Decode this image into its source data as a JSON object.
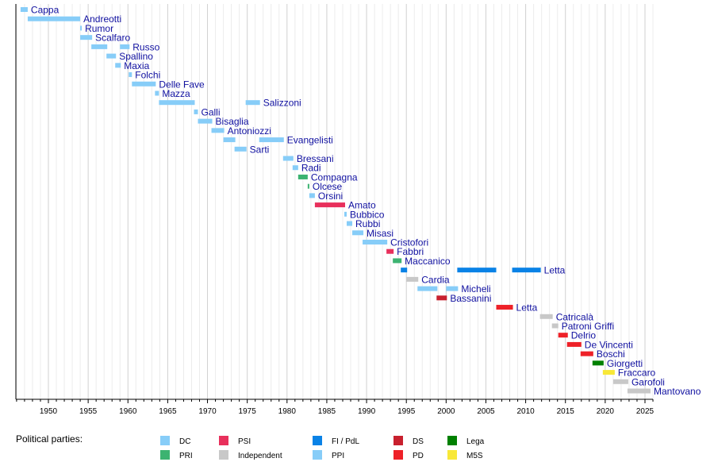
{
  "chart_data": {
    "type": "timeline",
    "xlim": [
      1946,
      2026
    ],
    "x_ticks": [
      1950,
      1955,
      1960,
      1965,
      1970,
      1975,
      1980,
      1985,
      1990,
      1995,
      2000,
      2005,
      2010,
      2015,
      2020,
      2025
    ],
    "grid": "vertical, yearly minor and 5-year major",
    "legend": {
      "title": "Political parties:",
      "placement": "bottom",
      "items": [
        {
          "party": "DC",
          "color": "#87cdf8"
        },
        {
          "party": "PRI",
          "color": "#3cb371"
        },
        {
          "party": "PSI",
          "color": "#e8305c"
        },
        {
          "party": "Independent",
          "color": "#c8c8c8"
        },
        {
          "party": "FI / PdL",
          "color": "#0a82e6"
        },
        {
          "party": "PPI",
          "color": "#87cdf8"
        },
        {
          "party": "DS",
          "color": "#c8202e"
        },
        {
          "party": "PD",
          "color": "#ee2128"
        },
        {
          "party": "Lega",
          "color": "#008000"
        },
        {
          "party": "M5S",
          "color": "#f8e838"
        }
      ]
    },
    "rows": [
      {
        "name": "Cappa",
        "segments": [
          {
            "start": 1946.5,
            "end": 1947.4,
            "party": "DC"
          }
        ]
      },
      {
        "name": "Andreotti",
        "segments": [
          {
            "start": 1947.4,
            "end": 1954.0,
            "party": "DC"
          }
        ]
      },
      {
        "name": "Rumor",
        "segments": [
          {
            "start": 1954.0,
            "end": 1954.1,
            "party": "DC"
          }
        ]
      },
      {
        "name": "Scalfaro",
        "segments": [
          {
            "start": 1954.0,
            "end": 1955.5,
            "party": "DC"
          }
        ]
      },
      {
        "name": "Russo",
        "segments": [
          {
            "start": 1955.4,
            "end": 1957.4,
            "party": "DC"
          },
          {
            "start": 1959.0,
            "end": 1960.2,
            "party": "DC"
          }
        ]
      },
      {
        "name": "Spallino",
        "segments": [
          {
            "start": 1957.3,
            "end": 1958.5,
            "party": "DC"
          }
        ]
      },
      {
        "name": "Maxia",
        "segments": [
          {
            "start": 1958.4,
            "end": 1959.1,
            "party": "DC"
          }
        ]
      },
      {
        "name": "Folchi",
        "segments": [
          {
            "start": 1960.1,
            "end": 1960.5,
            "party": "DC"
          }
        ]
      },
      {
        "name": "Delle Fave",
        "segments": [
          {
            "start": 1960.5,
            "end": 1963.5,
            "party": "DC"
          }
        ]
      },
      {
        "name": "Mazza",
        "segments": [
          {
            "start": 1963.4,
            "end": 1963.9,
            "party": "DC"
          }
        ]
      },
      {
        "name": "Salizzoni",
        "segments": [
          {
            "start": 1963.9,
            "end": 1968.4,
            "party": "DC"
          },
          {
            "start": 1974.8,
            "end": 1976.6,
            "party": "DC"
          }
        ]
      },
      {
        "name": "Galli",
        "segments": [
          {
            "start": 1968.3,
            "end": 1968.8,
            "party": "DC"
          }
        ]
      },
      {
        "name": "Bisaglia",
        "segments": [
          {
            "start": 1968.8,
            "end": 1970.6,
            "party": "DC"
          }
        ]
      },
      {
        "name": "Antoniozzi",
        "segments": [
          {
            "start": 1970.5,
            "end": 1972.1,
            "party": "DC"
          }
        ]
      },
      {
        "name": "Evangelisti",
        "segments": [
          {
            "start": 1972.0,
            "end": 1973.5,
            "party": "DC"
          },
          {
            "start": 1976.5,
            "end": 1979.6,
            "party": "DC"
          }
        ]
      },
      {
        "name": "Sarti",
        "segments": [
          {
            "start": 1973.4,
            "end": 1974.9,
            "party": "DC"
          }
        ]
      },
      {
        "name": "Bressani",
        "segments": [
          {
            "start": 1979.5,
            "end": 1980.8,
            "party": "DC"
          }
        ]
      },
      {
        "name": "Radi",
        "segments": [
          {
            "start": 1980.7,
            "end": 1981.4,
            "party": "DC"
          }
        ]
      },
      {
        "name": "Compagna",
        "segments": [
          {
            "start": 1981.4,
            "end": 1982.6,
            "party": "PRI"
          }
        ]
      },
      {
        "name": "Olcese",
        "segments": [
          {
            "start": 1982.6,
            "end": 1982.8,
            "party": "PRI"
          }
        ]
      },
      {
        "name": "Orsini",
        "segments": [
          {
            "start": 1982.8,
            "end": 1983.5,
            "party": "DC"
          }
        ]
      },
      {
        "name": "Amato",
        "segments": [
          {
            "start": 1983.5,
            "end": 1987.3,
            "party": "PSI"
          }
        ]
      },
      {
        "name": "Bubbico",
        "segments": [
          {
            "start": 1987.2,
            "end": 1987.5,
            "party": "DC"
          }
        ]
      },
      {
        "name": "Rubbi",
        "segments": [
          {
            "start": 1987.5,
            "end": 1988.2,
            "party": "DC"
          }
        ]
      },
      {
        "name": "Misasi",
        "segments": [
          {
            "start": 1988.2,
            "end": 1989.6,
            "party": "DC"
          }
        ]
      },
      {
        "name": "Cristofori",
        "segments": [
          {
            "start": 1989.5,
            "end": 1992.6,
            "party": "DC"
          }
        ]
      },
      {
        "name": "Fabbri",
        "segments": [
          {
            "start": 1992.5,
            "end": 1993.4,
            "party": "PSI"
          }
        ]
      },
      {
        "name": "Maccanico",
        "segments": [
          {
            "start": 1993.3,
            "end": 1994.4,
            "party": "PRI"
          }
        ]
      },
      {
        "name": "Letta",
        "segments": [
          {
            "start": 1994.3,
            "end": 1995.1,
            "party": "FI / PdL"
          },
          {
            "start": 2001.4,
            "end": 2006.3,
            "party": "FI / PdL"
          },
          {
            "start": 2008.3,
            "end": 2011.9,
            "party": "FI / PdL"
          }
        ]
      },
      {
        "name": "Cardia",
        "segments": [
          {
            "start": 1995.0,
            "end": 1996.5,
            "party": "Independent"
          }
        ]
      },
      {
        "name": "Micheli",
        "segments": [
          {
            "start": 1996.4,
            "end": 1998.9,
            "party": "PPI"
          },
          {
            "start": 2000.0,
            "end": 2001.5,
            "party": "PPI"
          }
        ]
      },
      {
        "name": "Bassanini",
        "segments": [
          {
            "start": 1998.8,
            "end": 2000.1,
            "party": "DS"
          }
        ]
      },
      {
        "name": "Letta",
        "segments": [
          {
            "start": 2006.3,
            "end": 2008.4,
            "party": "PD"
          }
        ]
      },
      {
        "name": "Catricalà",
        "segments": [
          {
            "start": 2011.8,
            "end": 2013.4,
            "party": "Independent"
          }
        ]
      },
      {
        "name": "Patroni Griffi",
        "segments": [
          {
            "start": 2013.3,
            "end": 2014.1,
            "party": "Independent"
          }
        ]
      },
      {
        "name": "Delrio",
        "segments": [
          {
            "start": 2014.1,
            "end": 2015.3,
            "party": "PD"
          }
        ]
      },
      {
        "name": "De Vincenti",
        "segments": [
          {
            "start": 2015.2,
            "end": 2017.0,
            "party": "PD"
          }
        ]
      },
      {
        "name": "Boschi",
        "segments": [
          {
            "start": 2016.9,
            "end": 2018.5,
            "party": "PD"
          }
        ]
      },
      {
        "name": "Giorgetti",
        "segments": [
          {
            "start": 2018.4,
            "end": 2019.8,
            "party": "Lega"
          }
        ]
      },
      {
        "name": "Fraccaro",
        "segments": [
          {
            "start": 2019.7,
            "end": 2021.2,
            "party": "M5S"
          }
        ]
      },
      {
        "name": "Garofoli",
        "segments": [
          {
            "start": 2021.0,
            "end": 2022.9,
            "party": "Independent"
          }
        ]
      },
      {
        "name": "Mantovano",
        "segments": [
          {
            "start": 2022.8,
            "end": 2025.7,
            "party": "Independent"
          }
        ]
      }
    ]
  }
}
